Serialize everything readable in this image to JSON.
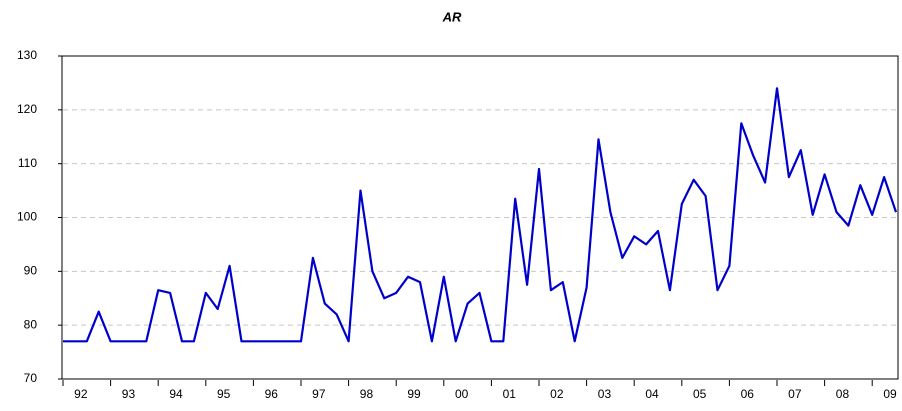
{
  "chart_data": {
    "type": "line",
    "title": "AR",
    "categories": [
      "92",
      null,
      null,
      null,
      "93",
      null,
      null,
      null,
      "94",
      null,
      null,
      null,
      "95",
      null,
      null,
      null,
      "96",
      null,
      null,
      null,
      "97",
      null,
      null,
      null,
      "98",
      null,
      null,
      null,
      "99",
      null,
      null,
      null,
      "00",
      null,
      null,
      null,
      "01",
      null,
      null,
      null,
      "02",
      null,
      null,
      null,
      "03",
      null,
      null,
      null,
      "04",
      null,
      null,
      null,
      "05",
      null,
      null,
      null,
      "06",
      null,
      null,
      null,
      "07",
      null,
      null,
      null,
      "08",
      null,
      null,
      null,
      "09",
      null,
      null
    ],
    "series": [
      {
        "name": "AR",
        "color": "#0000cc",
        "values": [
          77,
          77,
          77,
          82.5,
          77,
          77,
          77,
          77,
          86.5,
          86,
          77,
          77,
          86,
          83,
          91,
          77,
          77,
          77,
          77,
          77,
          77,
          92.5,
          84,
          82,
          77,
          105,
          90,
          85,
          86,
          89,
          88,
          77,
          89,
          77,
          84,
          86,
          77,
          77,
          103.5,
          87.5,
          109,
          86.5,
          88,
          77,
          87,
          114.5,
          101,
          92.5,
          96.5,
          95,
          97.5,
          86.5,
          102.5,
          107,
          104,
          86.5,
          91,
          117.5,
          111.5,
          106.5,
          124,
          107.5,
          112.5,
          100.5,
          108,
          101,
          98.5,
          106,
          100.5,
          107.5,
          101
        ]
      }
    ],
    "ylim": [
      70,
      130
    ],
    "yticks": [
      70,
      80,
      90,
      100,
      110,
      120,
      130
    ],
    "grid": true
  }
}
